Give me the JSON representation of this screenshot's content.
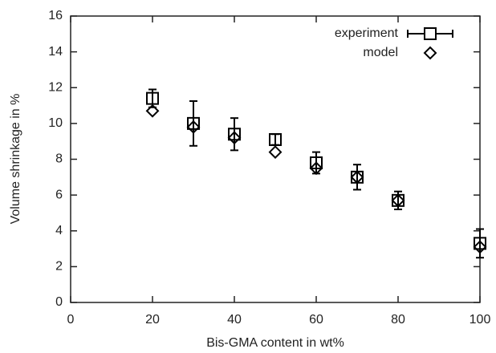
{
  "chart_data": {
    "type": "scatter",
    "xlabel": "Bis-GMA content in wt%",
    "ylabel": "Volume shrinkage in %",
    "xlim": [
      0,
      100
    ],
    "ylim": [
      0,
      16
    ],
    "xticks": [
      0,
      20,
      40,
      60,
      80,
      100
    ],
    "yticks": [
      0,
      2,
      4,
      6,
      8,
      10,
      12,
      14,
      16
    ],
    "legend": "upper right",
    "series": [
      {
        "name": "experiment",
        "marker": "square",
        "color": "#000000",
        "x": [
          20,
          30,
          40,
          50,
          60,
          70,
          80,
          100
        ],
        "values": [
          11.4,
          10.0,
          9.4,
          9.1,
          7.8,
          7.0,
          5.7,
          3.3
        ],
        "errors": [
          0.5,
          1.25,
          0.9,
          0.3,
          0.6,
          0.7,
          0.5,
          0.8
        ]
      },
      {
        "name": "model",
        "marker": "diamond",
        "color": "#000000",
        "x": [
          20,
          30,
          40,
          50,
          60,
          70,
          80,
          100
        ],
        "values": [
          10.7,
          9.8,
          9.2,
          8.4,
          7.5,
          7.0,
          5.7,
          3.1
        ]
      }
    ]
  }
}
